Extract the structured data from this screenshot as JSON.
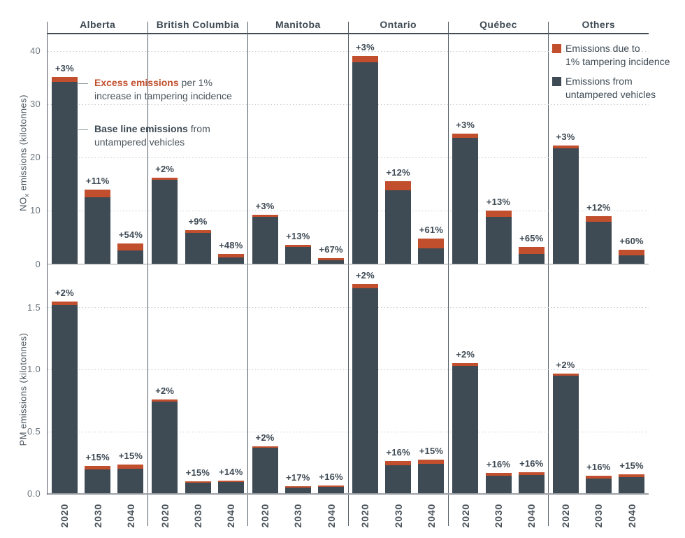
{
  "figure": {
    "provinces": [
      "Alberta",
      "British Columbia",
      "Manitoba",
      "Ontario",
      "Québec",
      "Others"
    ],
    "years": [
      "2020",
      "2030",
      "2040"
    ]
  },
  "colors": {
    "bar_base": "#3e4a54",
    "bar_excess": "#c14f2e",
    "axis": "#3e4a54",
    "divider": "#555e66",
    "baseline": "#9aa1a6",
    "grid": "#c6cacd",
    "text_dark": "#3e4a54",
    "text_gray": "#6e777e"
  },
  "legend": {
    "items": [
      {
        "key": "tampering-emissions",
        "color": "#c14f2e",
        "line1": "Emissions due to",
        "line2": "1% tampering incidence"
      },
      {
        "key": "untampered-emissions",
        "color": "#3e4a54",
        "line1": "Emissions from",
        "line2": "untampered vehicles"
      }
    ]
  },
  "annotations": {
    "excess": {
      "dash": "—",
      "bold": "Excess emissions",
      "rest": " per 1%",
      "line2": "increase in tampering incidence"
    },
    "baseline": {
      "dash": "—",
      "bold": "Base line emissions",
      "rest": " from",
      "line2": "untampered vehicles"
    }
  },
  "chart_data": [
    {
      "type": "bar",
      "stacked": true,
      "ylabel": "NOx emissions (kilotonnes)",
      "ylabel_parts": {
        "pre": "NO",
        "sub": "x",
        "post": " emissions (kilotonnes)"
      },
      "ytick_values": [
        0,
        10,
        20,
        30,
        40
      ],
      "ytick_labels": [
        "0",
        "10",
        "20",
        "30",
        "40"
      ],
      "ylim": [
        0,
        43.2
      ],
      "grid": "dotted-horizontal",
      "series_names": [
        "Emissions from untampered vehicles (base)",
        "Emissions due to 1% tampering incidence (excess = base × pct)"
      ],
      "groups": [
        {
          "province": "Alberta",
          "bars": [
            {
              "year": "2020",
              "base": 34.2,
              "excess_pct": 3,
              "label": "+3%"
            },
            {
              "year": "2030",
              "base": 12.6,
              "excess_pct": 11,
              "label": "+11%"
            },
            {
              "year": "2040",
              "base": 2.55,
              "excess_pct": 54,
              "label": "+54%"
            }
          ]
        },
        {
          "province": "British Columbia",
          "bars": [
            {
              "year": "2020",
              "base": 15.9,
              "excess_pct": 2,
              "label": "+2%"
            },
            {
              "year": "2030",
              "base": 5.9,
              "excess_pct": 9,
              "label": "+9%"
            },
            {
              "year": "2040",
              "base": 1.3,
              "excess_pct": 48,
              "label": "+48%"
            }
          ]
        },
        {
          "province": "Manitoba",
          "bars": [
            {
              "year": "2020",
              "base": 8.9,
              "excess_pct": 3,
              "label": "+3%"
            },
            {
              "year": "2030",
              "base": 3.2,
              "excess_pct": 13,
              "label": "+13%"
            },
            {
              "year": "2040",
              "base": 0.7,
              "excess_pct": 67,
              "label": "+67%"
            }
          ]
        },
        {
          "province": "Ontario",
          "bars": [
            {
              "year": "2020",
              "base": 38.0,
              "excess_pct": 3,
              "label": "+3%"
            },
            {
              "year": "2030",
              "base": 13.9,
              "excess_pct": 12,
              "label": "+12%"
            },
            {
              "year": "2040",
              "base": 3.0,
              "excess_pct": 61,
              "label": "+61%"
            }
          ]
        },
        {
          "province": "Québec",
          "bars": [
            {
              "year": "2020",
              "base": 23.8,
              "excess_pct": 3,
              "label": "+3%"
            },
            {
              "year": "2030",
              "base": 8.9,
              "excess_pct": 13,
              "label": "+13%"
            },
            {
              "year": "2040",
              "base": 1.95,
              "excess_pct": 65,
              "label": "+65%"
            }
          ]
        },
        {
          "province": "Others",
          "bars": [
            {
              "year": "2020",
              "base": 21.7,
              "excess_pct": 3,
              "label": "+3%"
            },
            {
              "year": "2030",
              "base": 8.0,
              "excess_pct": 12,
              "label": "+12%"
            },
            {
              "year": "2040",
              "base": 1.7,
              "excess_pct": 60,
              "label": "+60%"
            }
          ]
        }
      ]
    },
    {
      "type": "bar",
      "stacked": true,
      "ylabel": "PM emissions (kilotonnes)",
      "ylabel_parts": {
        "pre": "PM",
        "sub": "",
        "post": " emissions (kilotonnes)"
      },
      "ytick_values": [
        0,
        0.5,
        1.0,
        1.5
      ],
      "ytick_labels": [
        "0.0",
        "0.5",
        "1.0",
        "1.5"
      ],
      "ylim": [
        0,
        1.85
      ],
      "grid": "dotted-horizontal",
      "series_names": [
        "Emissions from untampered vehicles (base)",
        "Emissions due to 1% tampering incidence (excess = base × pct)"
      ],
      "groups": [
        {
          "province": "Alberta",
          "bars": [
            {
              "year": "2020",
              "base": 1.52,
              "excess_pct": 2,
              "label": "+2%"
            },
            {
              "year": "2030",
              "base": 0.195,
              "excess_pct": 15,
              "label": "+15%"
            },
            {
              "year": "2040",
              "base": 0.205,
              "excess_pct": 15,
              "label": "+15%"
            }
          ]
        },
        {
          "province": "British Columbia",
          "bars": [
            {
              "year": "2020",
              "base": 0.745,
              "excess_pct": 2,
              "label": "+2%"
            },
            {
              "year": "2030",
              "base": 0.09,
              "excess_pct": 15,
              "label": "+15%"
            },
            {
              "year": "2040",
              "base": 0.095,
              "excess_pct": 14,
              "label": "+14%"
            }
          ]
        },
        {
          "province": "Manitoba",
          "bars": [
            {
              "year": "2020",
              "base": 0.37,
              "excess_pct": 2,
              "label": "+2%"
            },
            {
              "year": "2030",
              "base": 0.05,
              "excess_pct": 17,
              "label": "+17%"
            },
            {
              "year": "2040",
              "base": 0.055,
              "excess_pct": 16,
              "label": "+16%"
            }
          ]
        },
        {
          "province": "Ontario",
          "bars": [
            {
              "year": "2020",
              "base": 1.655,
              "excess_pct": 2,
              "label": "+2%"
            },
            {
              "year": "2030",
              "base": 0.23,
              "excess_pct": 16,
              "label": "+16%"
            },
            {
              "year": "2040",
              "base": 0.24,
              "excess_pct": 15,
              "label": "+15%"
            }
          ]
        },
        {
          "province": "Québec",
          "bars": [
            {
              "year": "2020",
              "base": 1.03,
              "excess_pct": 2,
              "label": "+2%"
            },
            {
              "year": "2030",
              "base": 0.145,
              "excess_pct": 16,
              "label": "+16%"
            },
            {
              "year": "2040",
              "base": 0.15,
              "excess_pct": 16,
              "label": "+16%"
            }
          ]
        },
        {
          "province": "Others",
          "bars": [
            {
              "year": "2020",
              "base": 0.95,
              "excess_pct": 2,
              "label": "+2%"
            },
            {
              "year": "2030",
              "base": 0.125,
              "excess_pct": 16,
              "label": "+16%"
            },
            {
              "year": "2040",
              "base": 0.135,
              "excess_pct": 15,
              "label": "+15%"
            }
          ]
        }
      ]
    }
  ]
}
